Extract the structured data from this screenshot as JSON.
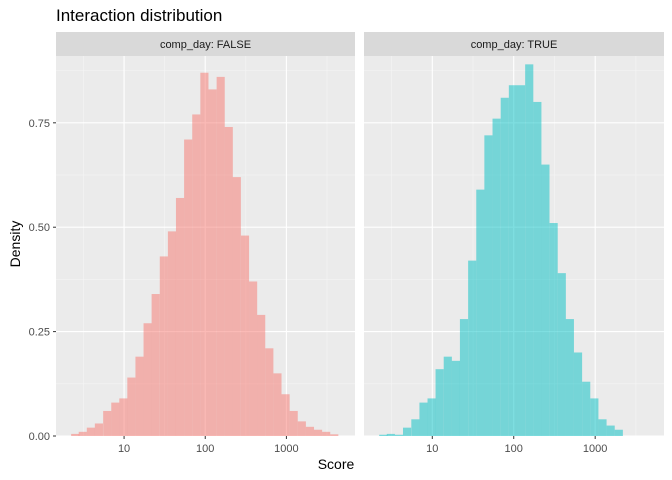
{
  "chart_data": {
    "type": "bar",
    "title": "Interaction distribution",
    "xlabel": "Score",
    "ylabel": "Density",
    "x_scale": "log10",
    "x_ticks": [
      10,
      100,
      1000
    ],
    "x_tick_labels": [
      "10",
      "100",
      "1000"
    ],
    "y_ticks": [
      0,
      0.25,
      0.5,
      0.75
    ],
    "y_tick_labels": [
      "0.00",
      "0.25",
      "0.50",
      "0.75"
    ],
    "ylim": [
      0,
      0.91
    ],
    "xlim": [
      1.45,
      7000
    ],
    "grid": true,
    "bin_width_log10": 0.1,
    "panels": [
      {
        "strip_label": "comp_day: FALSE",
        "color": "#F8766D",
        "bars": [
          {
            "x": 2.5,
            "density": 0.005
          },
          {
            "x": 3.1,
            "density": 0.01
          },
          {
            "x": 3.9,
            "density": 0.02
          },
          {
            "x": 4.9,
            "density": 0.03
          },
          {
            "x": 6.2,
            "density": 0.06
          },
          {
            "x": 7.8,
            "density": 0.08
          },
          {
            "x": 9.8,
            "density": 0.09
          },
          {
            "x": 12.3,
            "density": 0.14
          },
          {
            "x": 15.5,
            "density": 0.19
          },
          {
            "x": 19.5,
            "density": 0.27
          },
          {
            "x": 24.5,
            "density": 0.34
          },
          {
            "x": 30.9,
            "density": 0.43
          },
          {
            "x": 38.9,
            "density": 0.49
          },
          {
            "x": 48.9,
            "density": 0.57
          },
          {
            "x": 61.6,
            "density": 0.71
          },
          {
            "x": 77.6,
            "density": 0.77
          },
          {
            "x": 97.7,
            "density": 0.87
          },
          {
            "x": 123,
            "density": 0.83
          },
          {
            "x": 155,
            "density": 0.86
          },
          {
            "x": 195,
            "density": 0.74
          },
          {
            "x": 245,
            "density": 0.62
          },
          {
            "x": 309,
            "density": 0.48
          },
          {
            "x": 389,
            "density": 0.37
          },
          {
            "x": 489,
            "density": 0.29
          },
          {
            "x": 616,
            "density": 0.21
          },
          {
            "x": 776,
            "density": 0.15
          },
          {
            "x": 977,
            "density": 0.1
          },
          {
            "x": 1230,
            "density": 0.06
          },
          {
            "x": 1549,
            "density": 0.035
          },
          {
            "x": 1950,
            "density": 0.022
          },
          {
            "x": 2455,
            "density": 0.015
          },
          {
            "x": 3090,
            "density": 0.01
          },
          {
            "x": 3890,
            "density": 0.004
          }
        ]
      },
      {
        "strip_label": "comp_day: TRUE",
        "color": "#00BFC4",
        "bars": [
          {
            "x": 2.5,
            "density": 0.003
          },
          {
            "x": 3.1,
            "density": 0.005
          },
          {
            "x": 3.9,
            "density": 0.003
          },
          {
            "x": 4.9,
            "density": 0.02
          },
          {
            "x": 6.2,
            "density": 0.04
          },
          {
            "x": 7.8,
            "density": 0.08
          },
          {
            "x": 9.8,
            "density": 0.09
          },
          {
            "x": 12.3,
            "density": 0.16
          },
          {
            "x": 15.5,
            "density": 0.19
          },
          {
            "x": 19.5,
            "density": 0.18
          },
          {
            "x": 24.5,
            "density": 0.28
          },
          {
            "x": 30.9,
            "density": 0.42
          },
          {
            "x": 38.9,
            "density": 0.59
          },
          {
            "x": 48.9,
            "density": 0.72
          },
          {
            "x": 61.6,
            "density": 0.76
          },
          {
            "x": 77.6,
            "density": 0.81
          },
          {
            "x": 97.7,
            "density": 0.84
          },
          {
            "x": 123,
            "density": 0.84
          },
          {
            "x": 155,
            "density": 0.89
          },
          {
            "x": 195,
            "density": 0.8
          },
          {
            "x": 245,
            "density": 0.65
          },
          {
            "x": 309,
            "density": 0.51
          },
          {
            "x": 389,
            "density": 0.39
          },
          {
            "x": 489,
            "density": 0.28
          },
          {
            "x": 616,
            "density": 0.2
          },
          {
            "x": 776,
            "density": 0.13
          },
          {
            "x": 977,
            "density": 0.09
          },
          {
            "x": 1230,
            "density": 0.04
          },
          {
            "x": 1549,
            "density": 0.025
          },
          {
            "x": 1950,
            "density": 0.015
          }
        ]
      }
    ]
  }
}
